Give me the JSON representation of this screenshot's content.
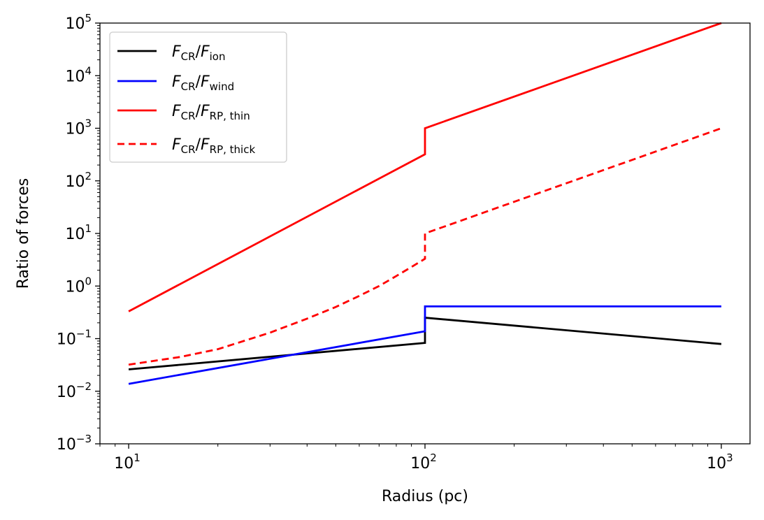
{
  "chart_data": {
    "type": "line",
    "title": "",
    "xlabel": "Radius (pc)",
    "ylabel": "Ratio of forces",
    "xscale": "log",
    "yscale": "log",
    "xlim": [
      8,
      1250
    ],
    "ylim": [
      0.001,
      100000
    ],
    "xticks": [
      {
        "value": 10,
        "base": "10",
        "exp": "1"
      },
      {
        "value": 100,
        "base": "10",
        "exp": "2"
      },
      {
        "value": 1000,
        "base": "10",
        "exp": "3"
      }
    ],
    "yticks": [
      {
        "value": 0.001,
        "base": "10",
        "exp": "−3"
      },
      {
        "value": 0.01,
        "base": "10",
        "exp": "−2"
      },
      {
        "value": 0.1,
        "base": "10",
        "exp": "−1"
      },
      {
        "value": 1,
        "base": "10",
        "exp": "0"
      },
      {
        "value": 10,
        "base": "10",
        "exp": "1"
      },
      {
        "value": 100,
        "base": "10",
        "exp": "2"
      },
      {
        "value": 1000,
        "base": "10",
        "exp": "3"
      },
      {
        "value": 10000,
        "base": "10",
        "exp": "4"
      },
      {
        "value": 100000,
        "base": "10",
        "exp": "5"
      }
    ],
    "grid": false,
    "legend_position": "top-left",
    "series": [
      {
        "name": "F_CR/F_ion",
        "legend": {
          "num": "F",
          "num_sub": "CR",
          "den": "F",
          "den_sub": "ion"
        },
        "color": "#000000",
        "style": "solid",
        "points": [
          [
            10,
            0.026
          ],
          [
            100,
            0.083
          ],
          [
            100,
            0.25
          ],
          [
            1000,
            0.079
          ]
        ]
      },
      {
        "name": "F_CR/F_wind",
        "legend": {
          "num": "F",
          "num_sub": "CR",
          "den": "F",
          "den_sub": "wind"
        },
        "color": "#0000ff",
        "style": "solid",
        "points": [
          [
            10,
            0.0138
          ],
          [
            100,
            0.138
          ],
          [
            100,
            0.41
          ],
          [
            1000,
            0.41
          ]
        ]
      },
      {
        "name": "F_CR/F_RP,thin",
        "legend": {
          "num": "F",
          "num_sub": "CR",
          "den": "F",
          "den_sub": "RP, thin"
        },
        "color": "#ff0000",
        "style": "solid",
        "points": [
          [
            10,
            0.33
          ],
          [
            100,
            320
          ],
          [
            100,
            1000
          ],
          [
            1000,
            100000
          ]
        ]
      },
      {
        "name": "F_CR/F_RP,thick",
        "legend": {
          "num": "F",
          "num_sub": "CR",
          "den": "F",
          "den_sub": "RP, thick"
        },
        "color": "#ff0000",
        "style": "dashed",
        "points": [
          [
            10,
            0.032
          ],
          [
            15,
            0.045
          ],
          [
            20,
            0.063
          ],
          [
            30,
            0.13
          ],
          [
            40,
            0.24
          ],
          [
            50,
            0.4
          ],
          [
            60,
            0.65
          ],
          [
            70,
            1.0
          ],
          [
            80,
            1.55
          ],
          [
            90,
            2.3
          ],
          [
            100,
            3.3
          ],
          [
            100,
            10
          ],
          [
            200,
            40
          ],
          [
            300,
            90
          ],
          [
            500,
            250
          ],
          [
            700,
            490
          ],
          [
            1000,
            1000
          ]
        ]
      }
    ]
  }
}
